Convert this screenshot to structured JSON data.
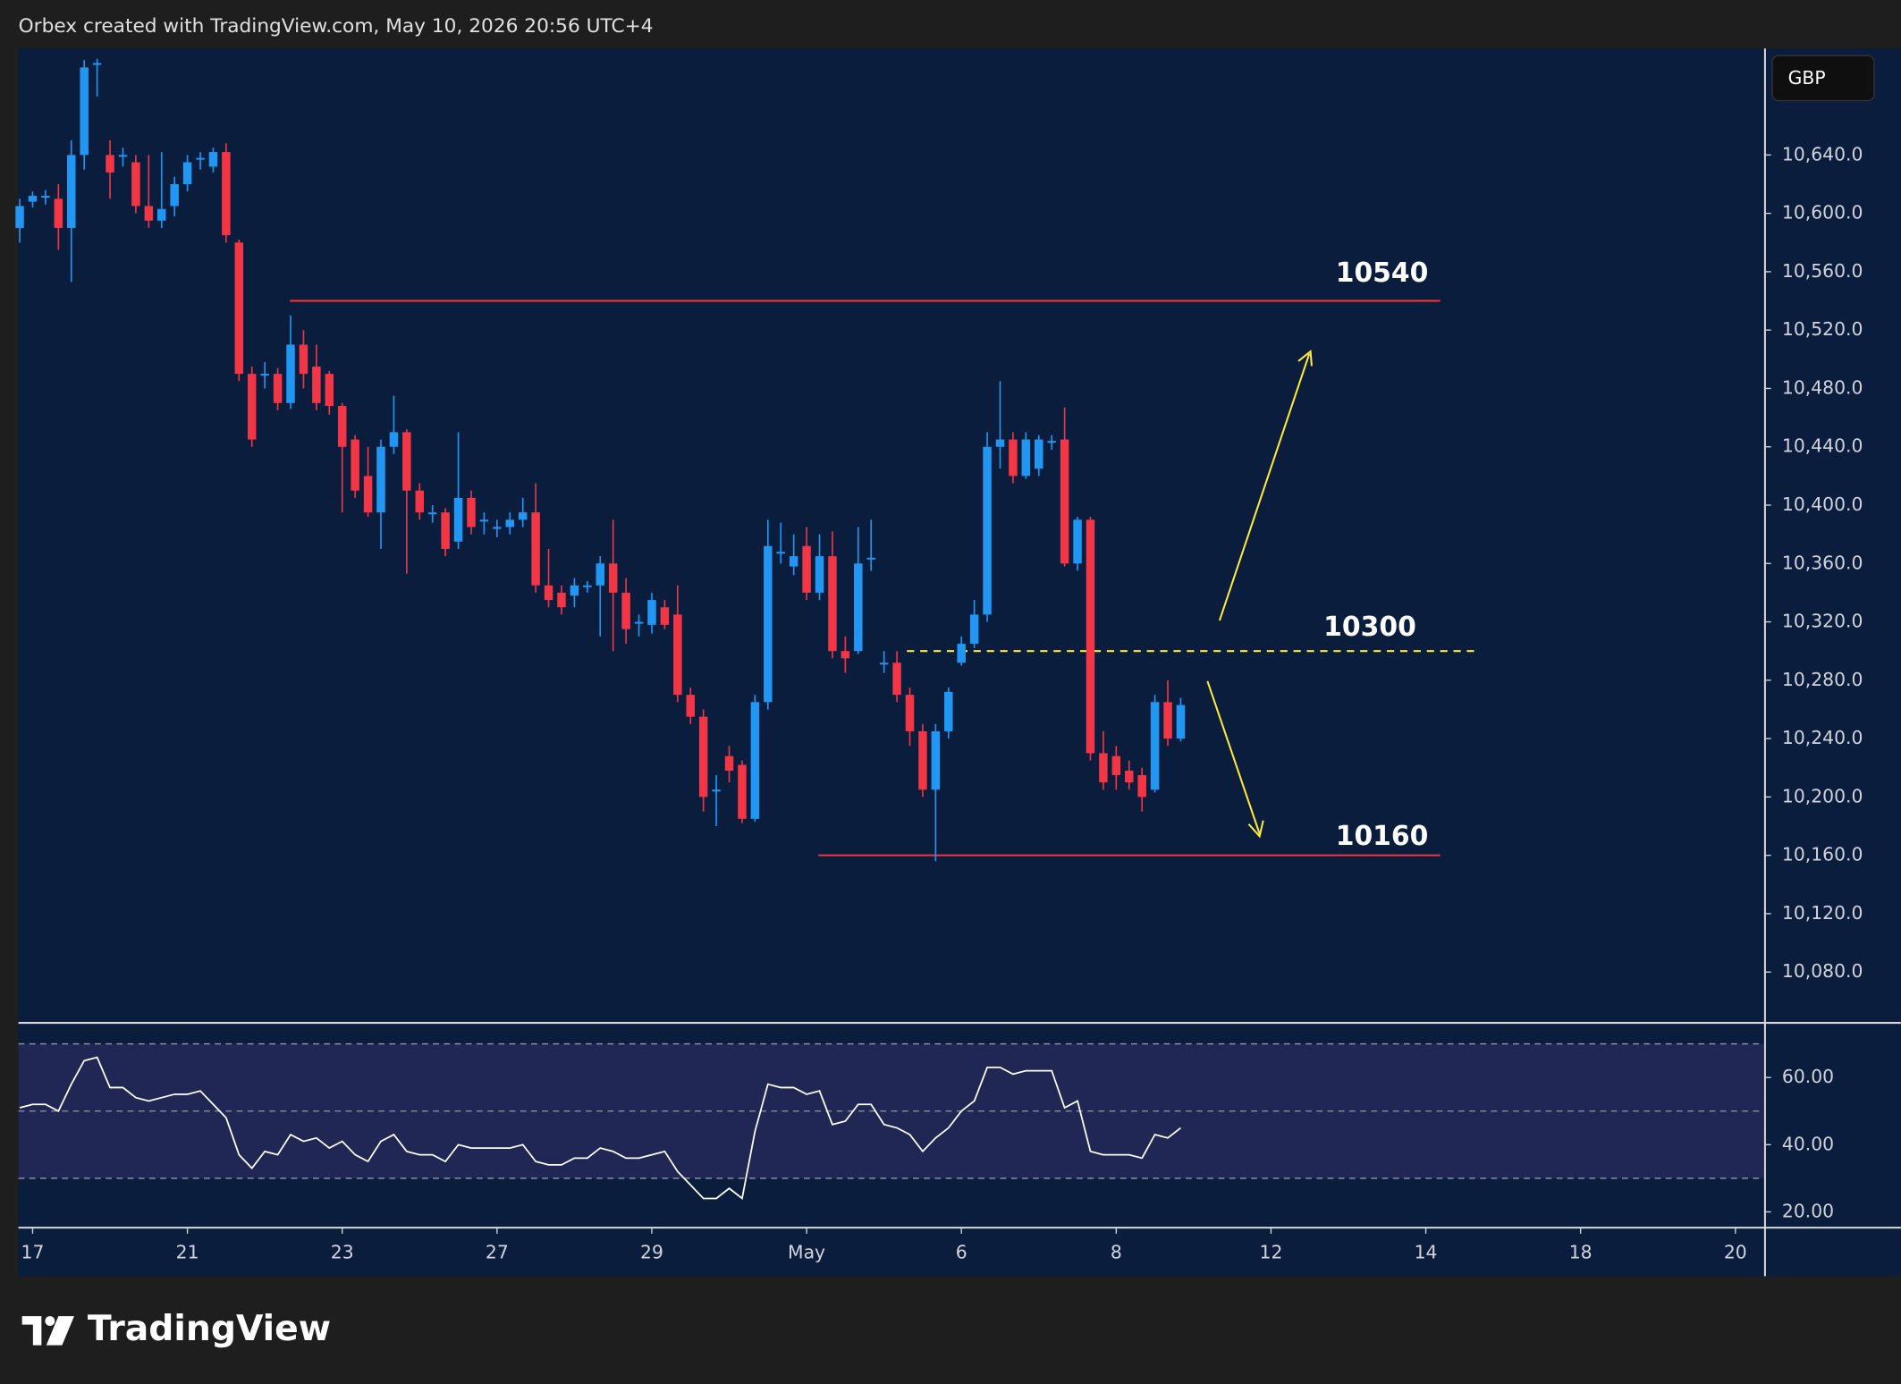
{
  "header": "Orbex created with TradingView.com, May 10, 2026 20:56 UTC+4",
  "currency": "GBP",
  "brand": "TradingView",
  "chart_data": {
    "type": "candlestick",
    "up_color": "#2196f3",
    "down_color": "#f23645",
    "xlim": [
      -0.1,
      135.2
    ],
    "xticks": [
      {
        "value": 1,
        "label": "17"
      },
      {
        "value": 13,
        "label": "21"
      },
      {
        "value": 25,
        "label": "23"
      },
      {
        "value": 37,
        "label": "27"
      },
      {
        "value": 49,
        "label": "29"
      },
      {
        "value": 61,
        "label": "May"
      },
      {
        "value": 73,
        "label": "6"
      },
      {
        "value": 85,
        "label": "8"
      },
      {
        "value": 97,
        "label": "12"
      },
      {
        "value": 109,
        "label": "14"
      },
      {
        "value": 121,
        "label": "18"
      },
      {
        "value": 133,
        "label": "20"
      }
    ],
    "ylim": [
      10046,
      10713
    ],
    "yticks": [
      {
        "value": 10080,
        "label": "10,080.0"
      },
      {
        "value": 10120,
        "label": "10,120.0"
      },
      {
        "value": 10160,
        "label": "10,160.0"
      },
      {
        "value": 10200,
        "label": "10,200.0"
      },
      {
        "value": 10240,
        "label": "10,240.0"
      },
      {
        "value": 10280,
        "label": "10,280.0"
      },
      {
        "value": 10320,
        "label": "10,320.0"
      },
      {
        "value": 10360,
        "label": "10,360.0"
      },
      {
        "value": 10400,
        "label": "10,400.0"
      },
      {
        "value": 10440,
        "label": "10,440.0"
      },
      {
        "value": 10480,
        "label": "10,480.0"
      },
      {
        "value": 10520,
        "label": "10,520.0"
      },
      {
        "value": 10560,
        "label": "10,560.0"
      },
      {
        "value": 10600,
        "label": "10,600.0"
      },
      {
        "value": 10640,
        "label": "10,640.0"
      }
    ],
    "candles": [
      [
        10590,
        10610,
        10580,
        10605
      ],
      [
        10608,
        10615,
        10604,
        10612
      ],
      [
        10611,
        10616,
        10606,
        10612
      ],
      [
        10610,
        10620,
        10575,
        10590
      ],
      [
        10590,
        10650,
        10553,
        10640
      ],
      [
        10640,
        10705,
        10630,
        10700
      ],
      [
        10702,
        10706,
        10680,
        10703
      ],
      [
        10640,
        10650,
        10610,
        10628
      ],
      [
        10639,
        10645,
        10632,
        10640
      ],
      [
        10635,
        10640,
        10600,
        10605
      ],
      [
        10605,
        10640,
        10590,
        10595
      ],
      [
        10595,
        10642,
        10590,
        10603
      ],
      [
        10605,
        10625,
        10598,
        10620
      ],
      [
        10620,
        10640,
        10615,
        10635
      ],
      [
        10637,
        10642,
        10630,
        10638
      ],
      [
        10632,
        10645,
        10628,
        10642
      ],
      [
        10642,
        10648,
        10580,
        10585
      ],
      [
        10580,
        10582,
        10485,
        10490
      ],
      [
        10490,
        10495,
        10440,
        10445
      ],
      [
        10489,
        10498,
        10480,
        10490
      ],
      [
        10490,
        10494,
        10465,
        10470
      ],
      [
        10470,
        10530,
        10466,
        10510
      ],
      [
        10510,
        10520,
        10480,
        10490
      ],
      [
        10495,
        10510,
        10465,
        10470
      ],
      [
        10490,
        10492,
        10462,
        10468
      ],
      [
        10468,
        10470,
        10395,
        10440
      ],
      [
        10445,
        10448,
        10405,
        10410
      ],
      [
        10420,
        10440,
        10392,
        10395
      ],
      [
        10395,
        10445,
        10370,
        10440
      ],
      [
        10440,
        10475,
        10435,
        10450
      ],
      [
        10450,
        10452,
        10353,
        10410
      ],
      [
        10410,
        10415,
        10390,
        10395
      ],
      [
        10394,
        10400,
        10388,
        10395
      ],
      [
        10395,
        10398,
        10365,
        10370
      ],
      [
        10375,
        10450,
        10370,
        10405
      ],
      [
        10405,
        10410,
        10380,
        10385
      ],
      [
        10389,
        10395,
        10380,
        10390
      ],
      [
        10384,
        10390,
        10378,
        10385
      ],
      [
        10385,
        10395,
        10380,
        10390
      ],
      [
        10390,
        10405,
        10385,
        10395
      ],
      [
        10395,
        10415,
        10340,
        10345
      ],
      [
        10345,
        10370,
        10330,
        10335
      ],
      [
        10340,
        10345,
        10325,
        10330
      ],
      [
        10338,
        10350,
        10330,
        10345
      ],
      [
        10344,
        10348,
        10340,
        10345
      ],
      [
        10345,
        10365,
        10310,
        10360
      ],
      [
        10360,
        10390,
        10300,
        10340
      ],
      [
        10340,
        10350,
        10305,
        10315
      ],
      [
        10319,
        10325,
        10310,
        10320
      ],
      [
        10318,
        10340,
        10312,
        10335
      ],
      [
        10330,
        10335,
        10315,
        10318
      ],
      [
        10325,
        10345,
        10265,
        10270
      ],
      [
        10270,
        10275,
        10250,
        10255
      ],
      [
        10255,
        10260,
        10190,
        10200
      ],
      [
        10204,
        10215,
        10180,
        10205
      ],
      [
        10228,
        10235,
        10210,
        10218
      ],
      [
        10222,
        10225,
        10182,
        10185
      ],
      [
        10185,
        10270,
        10183,
        10265
      ],
      [
        10265,
        10390,
        10260,
        10372
      ],
      [
        10367,
        10388,
        10360,
        10368
      ],
      [
        10358,
        10380,
        10352,
        10365
      ],
      [
        10372,
        10385,
        10335,
        10340
      ],
      [
        10340,
        10380,
        10335,
        10365
      ],
      [
        10365,
        10382,
        10295,
        10300
      ],
      [
        10300,
        10310,
        10285,
        10295
      ],
      [
        10300,
        10385,
        10298,
        10360
      ],
      [
        10363,
        10390,
        10355,
        10364
      ],
      [
        10291,
        10300,
        10285,
        10292
      ],
      [
        10292,
        10300,
        10265,
        10270
      ],
      [
        10270,
        10275,
        10235,
        10245
      ],
      [
        10245,
        10250,
        10200,
        10205
      ],
      [
        10205,
        10250,
        10156,
        10245
      ],
      [
        10245,
        10275,
        10240,
        10272
      ],
      [
        10292,
        10310,
        10290,
        10305
      ],
      [
        10305,
        10335,
        10302,
        10325
      ],
      [
        10325,
        10450,
        10320,
        10440
      ],
      [
        10440,
        10485,
        10425,
        10445
      ],
      [
        10445,
        10450,
        10415,
        10420
      ],
      [
        10420,
        10450,
        10418,
        10445
      ],
      [
        10425,
        10448,
        10420,
        10445
      ],
      [
        10443,
        10448,
        10438,
        10444
      ],
      [
        10445,
        10467,
        10358,
        10360
      ],
      [
        10360,
        10392,
        10355,
        10390
      ],
      [
        10390,
        10392,
        10225,
        10230
      ],
      [
        10230,
        10245,
        10205,
        10210
      ],
      [
        10228,
        10235,
        10205,
        10215
      ],
      [
        10218,
        10225,
        10205,
        10210
      ],
      [
        10215,
        10220,
        10190,
        10200
      ],
      [
        10205,
        10270,
        10203,
        10265
      ],
      [
        10265,
        10280,
        10235,
        10240
      ],
      [
        10240,
        10268,
        10238,
        10263
      ]
    ],
    "levels": [
      {
        "value": 10540,
        "color": "#f23645",
        "style": "solid"
      },
      {
        "value": 10300,
        "color": "#ffeb3b",
        "style": "dashed"
      },
      {
        "value": 10160,
        "color": "#f23645",
        "style": "solid"
      }
    ],
    "rsi": {
      "color": "#ffffff",
      "ylim": [
        15.3,
        75.9
      ],
      "yticks": [
        {
          "value": 20,
          "label": "20.00"
        },
        {
          "value": 40,
          "label": "40.00"
        },
        {
          "value": 60,
          "label": "60.00"
        }
      ],
      "bands": [
        30,
        50,
        70
      ],
      "values": [
        51,
        52,
        52,
        50,
        58,
        65,
        66,
        57,
        57,
        54,
        53,
        54,
        55,
        55,
        56,
        52,
        48,
        37,
        33,
        38,
        37,
        43,
        41,
        42,
        39,
        41,
        37,
        35,
        41,
        43,
        38,
        37,
        37,
        35,
        40,
        39,
        39,
        39,
        39,
        40,
        35,
        34,
        34,
        36,
        36,
        39,
        38,
        36,
        36,
        37,
        38,
        32,
        28,
        24,
        24,
        27,
        24,
        44,
        58,
        57,
        57,
        55,
        56,
        46,
        47,
        52,
        52,
        46,
        45,
        43,
        38,
        42,
        45,
        50,
        53,
        63,
        63,
        61,
        62,
        62,
        62,
        51,
        53,
        38,
        37,
        37,
        37,
        36,
        43,
        42,
        45
      ]
    }
  }
}
